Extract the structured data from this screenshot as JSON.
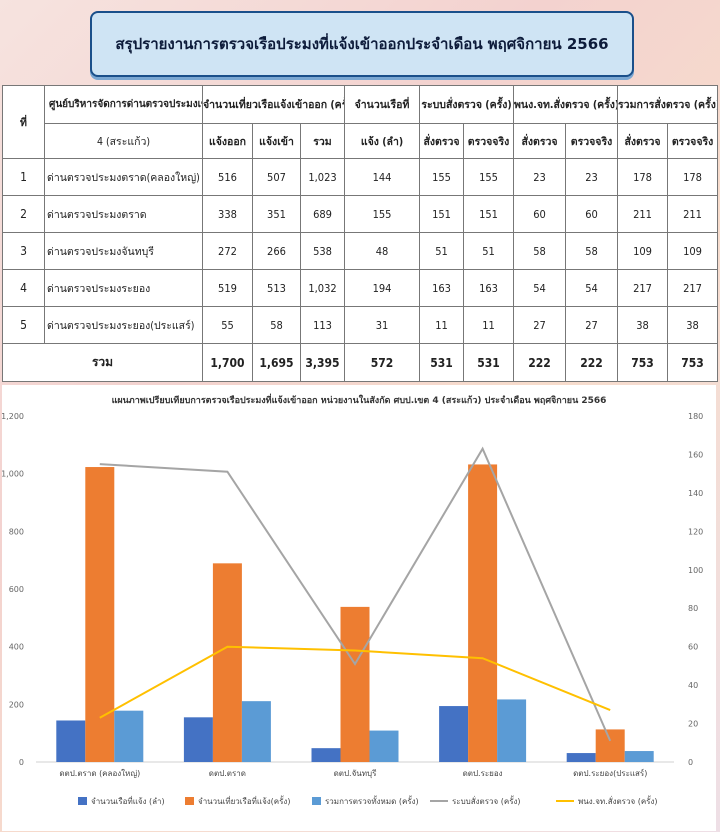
{
  "title": "สรุปรายงานการตรวจเรือประมงที่แจ้งเข้าออกประจำเดือน พฤศจิกายน 2566",
  "table": {
    "h_no": "ที่",
    "h_center_1": "ศูนย์บริหารจัดการด่านตรวจประมงเขต",
    "h_center_2": "4 (สระแก้ว)",
    "h_trips": "จำนวนเที่ยวเรือแจ้งเข้าออก (ครั้ง)",
    "h_trips_out": "แจ้งออก",
    "h_trips_in": "แจ้งเข้า",
    "h_trips_total": "รวม",
    "h_boats_1": "จำนวนเรือที่",
    "h_boats_2": "แจ้ง (ลำ)",
    "h_system": "ระบบสั่งตรวจ (ครั้ง)",
    "h_officer": "พนง.จท.สั่งตรวจ (ครั้ง)",
    "h_sum": "รวมการสั่งตรวจ (ครั้ง)",
    "h_order": "สั่งตรวจ",
    "h_actual": "ตรวจจริง",
    "rows": [
      {
        "no": "1",
        "name": "ด่านตรวจประมงตราด(คลองใหญ่)",
        "out": "516",
        "in": "507",
        "total": "1,023",
        "boats": "144",
        "sys_order": "155",
        "sys_actual": "155",
        "off_order": "23",
        "off_actual": "23",
        "sum_order": "178",
        "sum_actual": "178"
      },
      {
        "no": "2",
        "name": "ด่านตรวจประมงตราด",
        "out": "338",
        "in": "351",
        "total": "689",
        "boats": "155",
        "sys_order": "151",
        "sys_actual": "151",
        "off_order": "60",
        "off_actual": "60",
        "sum_order": "211",
        "sum_actual": "211"
      },
      {
        "no": "3",
        "name": "ด่านตรวจประมงจันทบุรี",
        "out": "272",
        "in": "266",
        "total": "538",
        "boats": "48",
        "sys_order": "51",
        "sys_actual": "51",
        "off_order": "58",
        "off_actual": "58",
        "sum_order": "109",
        "sum_actual": "109"
      },
      {
        "no": "4",
        "name": "ด่านตรวจประมงระยอง",
        "out": "519",
        "in": "513",
        "total": "1,032",
        "boats": "194",
        "sys_order": "163",
        "sys_actual": "163",
        "off_order": "54",
        "off_actual": "54",
        "sum_order": "217",
        "sum_actual": "217"
      },
      {
        "no": "5",
        "name": "ด่านตรวจประมงระยอง(ประแสร์)",
        "out": "55",
        "in": "58",
        "total": "113",
        "boats": "31",
        "sys_order": "11",
        "sys_actual": "11",
        "off_order": "27",
        "off_actual": "27",
        "sum_order": "38",
        "sum_actual": "38"
      }
    ],
    "total": {
      "label": "รวม",
      "out": "1,700",
      "in": "1,695",
      "total": "3,395",
      "boats": "572",
      "sys_order": "531",
      "sys_actual": "531",
      "off_order": "222",
      "off_actual": "222",
      "sum_order": "753",
      "sum_actual": "753"
    }
  },
  "chart_data": {
    "type": "bar",
    "title": "แผนภาพเปรียบเทียบการตรวจเรือประมงที่แจ้งเข้าออก หน่วยงานในสังกัด ศบป.เขต 4 (สระแก้ว) ประจำเดือน พฤศจิกายน 2566",
    "categories": [
      "ดตป.ตราด (คลองใหญ่)",
      "ดตป.ตราด",
      "ดตป.จันทบุรี",
      "ดตป.ระยอง",
      "ดตป.ระยอง(ประแสร์)"
    ],
    "y_left": {
      "min": 0,
      "max": 1200,
      "ticks": [
        "0",
        "200",
        "400",
        "600",
        "800",
        "1,000",
        "1,200"
      ]
    },
    "y_right": {
      "min": 0,
      "max": 180,
      "ticks": [
        "0",
        "20",
        "40",
        "60",
        "80",
        "100",
        "120",
        "140",
        "160",
        "180"
      ]
    },
    "series": [
      {
        "name": "จำนวนเรือที่แจ้ง (ลำ)",
        "kind": "bar",
        "axis": "left",
        "color": "#4472c4",
        "values": [
          144,
          155,
          48,
          194,
          31
        ]
      },
      {
        "name": "จำนวนเที่ยวเรือที่แจ้ง(ครั้ง)",
        "kind": "bar",
        "axis": "left",
        "color": "#ed7d31",
        "values": [
          1023,
          689,
          538,
          1032,
          113
        ]
      },
      {
        "name": "รวมการตรวจทั้งหมด (ครั้ง)",
        "kind": "bar",
        "axis": "left",
        "color": "#5b9bd5",
        "values": [
          178,
          211,
          109,
          217,
          38
        ]
      },
      {
        "name": "ระบบสั่งตรวจ (ครั้ง)",
        "kind": "line",
        "axis": "right",
        "color": "#a5a5a5",
        "values": [
          155,
          151,
          51,
          163,
          11
        ]
      },
      {
        "name": "พนง.จท.สั่งตรวจ (ครั้ง)",
        "kind": "line",
        "axis": "right",
        "color": "#ffc000",
        "values": [
          23,
          60,
          58,
          54,
          27
        ]
      }
    ],
    "legend_position": "bottom",
    "grid": false
  }
}
